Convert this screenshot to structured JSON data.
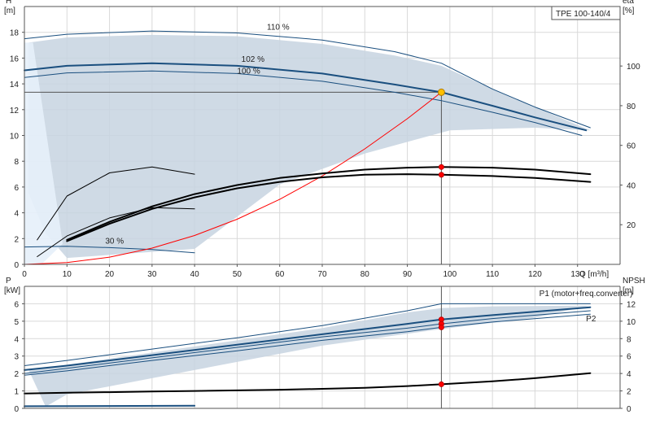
{
  "chart_data": [
    {
      "type": "line",
      "title": "",
      "legend_box": "TPE 100-140/4",
      "xlabel": "Q [m³/h]",
      "ylabel_left": [
        "H",
        "[m]"
      ],
      "ylabel_right": [
        "eta",
        "[%]"
      ],
      "xlim": [
        0,
        140
      ],
      "ylim_left": [
        0,
        20
      ],
      "ylim_right": [
        0,
        130
      ],
      "x_ticks": [
        "0",
        "10",
        "20",
        "30",
        "40",
        "50",
        "60",
        "70",
        "80",
        "90",
        "100",
        "110",
        "120",
        "130"
      ],
      "y_ticks_left": [
        "0",
        "2",
        "4",
        "6",
        "8",
        "10",
        "12",
        "14",
        "16",
        "18"
      ],
      "y_ticks_right": [
        "20",
        "40",
        "60",
        "80",
        "100"
      ],
      "grid": true,
      "operating_area": [
        [
          1,
          17.2
        ],
        [
          10,
          17.6
        ],
        [
          30,
          17.8
        ],
        [
          50,
          17.7
        ],
        [
          70,
          17.1
        ],
        [
          87,
          16.2
        ],
        [
          98,
          15.4
        ],
        [
          110,
          13.6
        ],
        [
          120,
          12.2
        ],
        [
          133,
          10.4
        ],
        [
          120,
          10.6
        ],
        [
          100,
          10.4
        ],
        [
          80,
          8.6
        ],
        [
          60,
          6.2
        ],
        [
          40,
          1.2
        ],
        [
          10,
          0.5
        ],
        [
          5,
          2.4
        ],
        [
          1,
          5.5
        ]
      ],
      "series": [
        {
          "name": "110 %",
          "color": "#1a4f7f",
          "width": 1,
          "x": [
            0,
            10,
            30,
            50,
            70,
            87,
            98,
            110,
            120,
            133
          ],
          "y": [
            17.5,
            17.85,
            18.1,
            17.95,
            17.4,
            16.5,
            15.6,
            13.6,
            12.2,
            10.6
          ]
        },
        {
          "name": "102 %",
          "color": "#1a4f7f",
          "width": 2,
          "x": [
            0,
            10,
            30,
            50,
            70,
            87,
            98,
            110,
            120,
            132
          ],
          "y": [
            15.05,
            15.4,
            15.6,
            15.4,
            14.8,
            13.95,
            13.35,
            12.3,
            11.4,
            10.4
          ]
        },
        {
          "name": "100 %",
          "color": "#1a4f7f",
          "width": 1,
          "x": [
            0,
            10,
            30,
            50,
            70,
            87,
            98,
            110,
            120,
            131
          ],
          "y": [
            14.5,
            14.85,
            15.0,
            14.8,
            14.2,
            13.35,
            12.7,
            11.8,
            11.0,
            10.0
          ]
        },
        {
          "name": "30 %",
          "color": "#1a4f7f",
          "width": 1,
          "x": [
            0,
            10,
            20,
            30,
            40
          ],
          "y": [
            1.35,
            1.4,
            1.3,
            1.15,
            0.9
          ]
        },
        {
          "name": "",
          "color": "#ff0000",
          "width": 1,
          "x": [
            0,
            10,
            20,
            30,
            40,
            50,
            60,
            70,
            80,
            90,
            98
          ],
          "y": [
            0,
            0.14,
            0.56,
            1.26,
            2.24,
            3.5,
            5.04,
            6.86,
            8.96,
            11.3,
            13.35
          ]
        },
        {
          "name": "",
          "color": "#000000",
          "width": 1,
          "x": [
            3,
            10,
            20,
            30,
            40
          ],
          "y": [
            1.9,
            5.3,
            7.1,
            7.55,
            7.0
          ]
        },
        {
          "name": "",
          "color": "#000000",
          "width": 1,
          "x": [
            3,
            10,
            20,
            30,
            40
          ],
          "y": [
            0.6,
            2.2,
            3.6,
            4.4,
            4.3
          ]
        },
        {
          "name": "",
          "color": "#000000",
          "width": 2,
          "x": [
            10,
            20,
            30,
            40,
            50,
            60,
            70,
            80,
            90,
            98,
            110,
            120,
            133
          ],
          "y": [
            1.9,
            3.3,
            4.5,
            5.45,
            6.15,
            6.7,
            7.05,
            7.35,
            7.5,
            7.55,
            7.5,
            7.35,
            7.0
          ]
        },
        {
          "name": "",
          "color": "#000000",
          "width": 2,
          "x": [
            10,
            20,
            30,
            40,
            50,
            60,
            70,
            80,
            90,
            98,
            110,
            120,
            133
          ],
          "y": [
            1.8,
            3.15,
            4.3,
            5.2,
            5.9,
            6.4,
            6.75,
            6.95,
            7.0,
            6.95,
            6.85,
            6.7,
            6.4
          ]
        }
      ],
      "markers": [
        {
          "x": 98,
          "y": 13.35,
          "color": "#ffc000"
        },
        {
          "x": 98,
          "y": 7.55,
          "color": "#ff0000"
        },
        {
          "x": 98,
          "y": 6.95,
          "color": "#ff0000"
        }
      ],
      "operating_point": {
        "x": 98,
        "y": 13.35
      },
      "curve_labels": [
        {
          "text": "110 %",
          "x": 57,
          "y": 18.2
        },
        {
          "text": "102 %",
          "x": 51,
          "y": 15.7
        },
        {
          "text": "100 %",
          "x": 50,
          "y": 14.8
        },
        {
          "text": "30 %",
          "x": 19,
          "y": 1.6
        }
      ]
    },
    {
      "type": "line",
      "title": "",
      "xlabel": "",
      "ylabel_left": [
        "P",
        "[kW]"
      ],
      "ylabel_right": [
        "NPSH",
        "[m]"
      ],
      "xlim": [
        0,
        140
      ],
      "ylim_left": [
        0,
        7
      ],
      "ylim_right": [
        0,
        14
      ],
      "y_ticks_left": [
        "0",
        "1",
        "2",
        "3",
        "4",
        "5",
        "6"
      ],
      "y_ticks_right": [
        "0",
        "2",
        "4",
        "6",
        "8",
        "10",
        "12"
      ],
      "grid": true,
      "operating_area": [
        [
          1,
          2.2
        ],
        [
          10,
          2.5
        ],
        [
          30,
          3.2
        ],
        [
          50,
          3.9
        ],
        [
          70,
          4.6
        ],
        [
          90,
          5.5
        ],
        [
          98,
          5.75
        ],
        [
          110,
          5.85
        ],
        [
          133,
          5.9
        ],
        [
          120,
          5.2
        ],
        [
          98,
          4.55
        ],
        [
          70,
          3.6
        ],
        [
          40,
          2.2
        ],
        [
          10,
          0.8
        ],
        [
          5,
          0.1
        ]
      ],
      "series": [
        {
          "name": "P1 (motor+freq.converter)",
          "color": "#1a4f7f",
          "width": 1,
          "x": [
            0,
            10,
            30,
            50,
            70,
            90,
            98,
            110,
            133
          ],
          "y": [
            2.45,
            2.75,
            3.4,
            4.05,
            4.75,
            5.6,
            6.0,
            6.0,
            6.0
          ]
        },
        {
          "name": "",
          "color": "#1a4f7f",
          "width": 2,
          "x": [
            0,
            10,
            30,
            50,
            70,
            90,
            98,
            110,
            133
          ],
          "y": [
            2.2,
            2.45,
            3.05,
            3.65,
            4.25,
            4.85,
            5.1,
            5.35,
            5.8
          ]
        },
        {
          "name": "",
          "color": "#1a4f7f",
          "width": 1,
          "x": [
            0,
            10,
            30,
            50,
            70,
            90,
            98,
            110,
            133
          ],
          "y": [
            2.0,
            2.3,
            2.9,
            3.5,
            4.1,
            4.6,
            4.85,
            5.15,
            5.6
          ]
        },
        {
          "name": "P2",
          "color": "#1a4f7f",
          "width": 1,
          "x": [
            0,
            10,
            30,
            50,
            70,
            90,
            98,
            110,
            133
          ],
          "y": [
            1.9,
            2.15,
            2.75,
            3.3,
            3.9,
            4.4,
            4.65,
            4.95,
            5.4
          ]
        },
        {
          "name": "",
          "color": "#000000",
          "width": 2,
          "x": [
            0,
            10,
            20,
            30,
            40,
            50,
            60,
            70,
            80,
            90,
            98,
            110,
            120,
            133
          ],
          "y": [
            0.85,
            0.9,
            0.93,
            0.97,
            1.0,
            1.03,
            1.07,
            1.12,
            1.18,
            1.28,
            1.38,
            1.55,
            1.73,
            2.02
          ]
        },
        {
          "name": "",
          "color": "#1a4f7f",
          "width": 2,
          "x": [
            0,
            40
          ],
          "y": [
            0.12,
            0.15
          ]
        }
      ],
      "markers": [
        {
          "x": 98,
          "y": 5.1,
          "color": "#ff0000"
        },
        {
          "x": 98,
          "y": 4.85,
          "color": "#ff0000"
        },
        {
          "x": 98,
          "y": 4.65,
          "color": "#ff0000"
        },
        {
          "x": 98,
          "y": 1.38,
          "color": "#ff0000"
        }
      ],
      "operating_point": {
        "x": 98
      },
      "curve_labels": [
        {
          "text": "P1 (motor+freq.converter)",
          "x": 121,
          "y": 6.45
        },
        {
          "text": "P2",
          "x": 132,
          "y": 5.0
        }
      ]
    }
  ]
}
